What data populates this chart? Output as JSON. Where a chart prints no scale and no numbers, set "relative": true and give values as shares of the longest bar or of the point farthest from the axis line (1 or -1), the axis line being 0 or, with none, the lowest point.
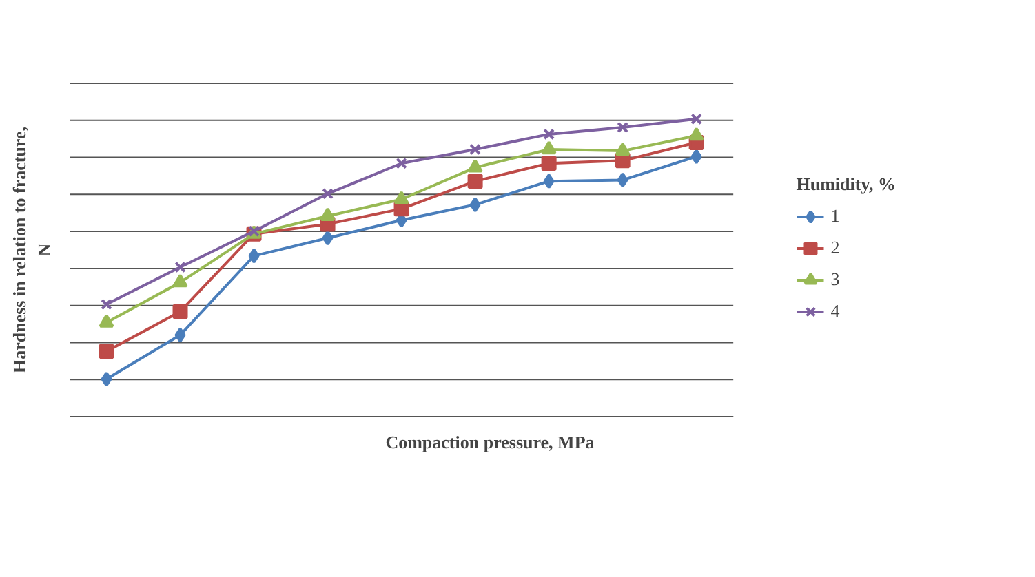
{
  "chart_data": {
    "type": "line",
    "relative": true,
    "xlabel": "Compaction pressure, MPa",
    "ylabel": "Hardness in relation to fracture,\nN",
    "legend_title": "Humidity, %",
    "legend": "right",
    "grid": "y",
    "categories": [
      null,
      null,
      null,
      null,
      null,
      null,
      null,
      null,
      null
    ],
    "series": [
      {
        "name": "1",
        "color": "#4a7ebb",
        "marker": "diamond",
        "values": [
          0.126,
          0.274,
          0.54,
          0.6,
          0.66,
          0.712,
          0.791,
          0.795,
          0.874
        ]
      },
      {
        "name": "2",
        "color": "#be4b48",
        "marker": "square",
        "values": [
          0.219,
          0.353,
          0.614,
          0.647,
          0.698,
          0.791,
          0.851,
          0.86,
          0.921
        ]
      },
      {
        "name": "3",
        "color": "#98b954",
        "marker": "triangle",
        "values": [
          0.316,
          0.451,
          0.614,
          0.674,
          0.73,
          0.837,
          0.898,
          0.893,
          0.944
        ]
      },
      {
        "name": "4",
        "color": "#7d60a0",
        "marker": "cross",
        "values": [
          0.377,
          0.502,
          0.623,
          0.749,
          0.851,
          0.898,
          0.949,
          0.972,
          1
        ]
      }
    ]
  }
}
